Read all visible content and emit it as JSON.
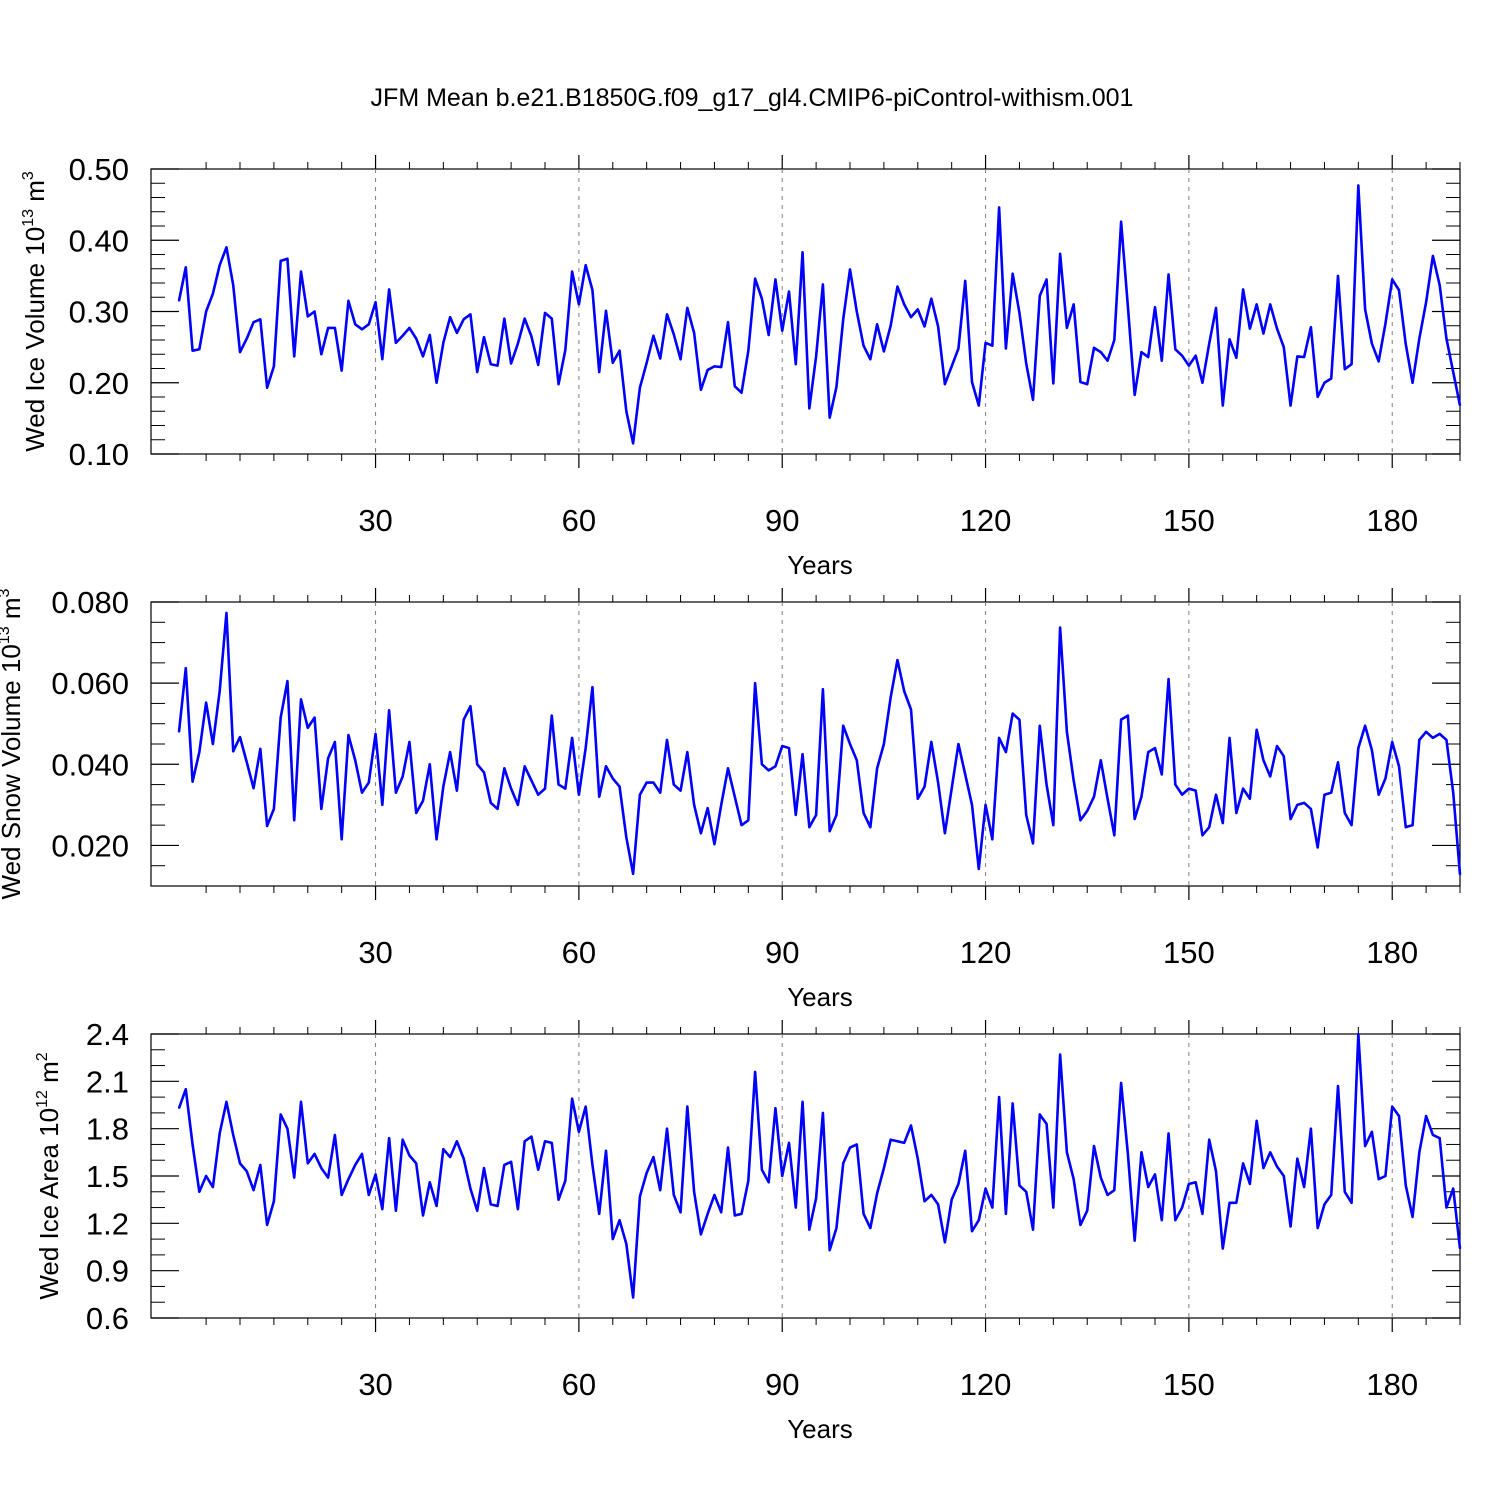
{
  "title": "JFM Mean b.e21.B1850G.f09_g17_gl4.CMIP6-piControl-withism.001",
  "colors": {
    "series": "#0000ff",
    "axis": "#000000",
    "grid": "#808080"
  },
  "chart_data": [
    {
      "type": "line",
      "ylabel": {
        "main": "Wed Ice Volume 10",
        "exp": "13",
        "unit": " m",
        "unit_exp": "3"
      },
      "xlabel": "Years",
      "xlim": [
        1,
        190
      ],
      "ylim": [
        0.1,
        0.5
      ],
      "x_ticks": [
        30,
        60,
        90,
        120,
        150,
        180
      ],
      "x_tick_labels": [
        "30",
        "60",
        "90",
        "120",
        "150",
        "180"
      ],
      "y_ticks": [
        0.1,
        0.2,
        0.3,
        0.4,
        0.5
      ],
      "y_tick_labels": [
        "0.10",
        "0.20",
        "0.30",
        "0.40",
        "0.50"
      ],
      "y_minor_step": 0.02,
      "grid": "vertical dashed at major x ticks",
      "series": [
        {
          "name": "Wed Ice Volume",
          "x_start": 1,
          "values": [
            0.315,
            0.362,
            0.245,
            0.247,
            0.3,
            0.325,
            0.365,
            0.39,
            0.337,
            0.243,
            0.262,
            0.285,
            0.289,
            0.193,
            0.223,
            0.371,
            0.374,
            0.237,
            0.356,
            0.293,
            0.3,
            0.24,
            0.277,
            0.277,
            0.217,
            0.315,
            0.282,
            0.275,
            0.282,
            0.313,
            0.233,
            0.331,
            0.256,
            0.266,
            0.277,
            0.262,
            0.237,
            0.267,
            0.2,
            0.256,
            0.292,
            0.27,
            0.289,
            0.296,
            0.215,
            0.264,
            0.226,
            0.224,
            0.29,
            0.227,
            0.255,
            0.29,
            0.265,
            0.225,
            0.298,
            0.29,
            0.198,
            0.246,
            0.356,
            0.31,
            0.365,
            0.33,
            0.215,
            0.301,
            0.228,
            0.245,
            0.16,
            0.115,
            0.193,
            0.228,
            0.266,
            0.234,
            0.296,
            0.268,
            0.233,
            0.305,
            0.27,
            0.19,
            0.218,
            0.223,
            0.222,
            0.285,
            0.195,
            0.186,
            0.245,
            0.346,
            0.318,
            0.267,
            0.345,
            0.273,
            0.328,
            0.226,
            0.383,
            0.164,
            0.237,
            0.338,
            0.151,
            0.194,
            0.289,
            0.359,
            0.3,
            0.252,
            0.233,
            0.282,
            0.244,
            0.28,
            0.335,
            0.31,
            0.292,
            0.303,
            0.279,
            0.318,
            0.279,
            0.198,
            0.223,
            0.248,
            0.343,
            0.201,
            0.168,
            0.256,
            0.252,
            0.446,
            0.248,
            0.353,
            0.298,
            0.227,
            0.176,
            0.322,
            0.345,
            0.199,
            0.381,
            0.277,
            0.31,
            0.201,
            0.198,
            0.249,
            0.243,
            0.231,
            0.26,
            0.426,
            0.307,
            0.183,
            0.243,
            0.236,
            0.306,
            0.231,
            0.352,
            0.247,
            0.238,
            0.224,
            0.238,
            0.2,
            0.255,
            0.305,
            0.168,
            0.261,
            0.235,
            0.331,
            0.276,
            0.31,
            0.269,
            0.31,
            0.276,
            0.25,
            0.168,
            0.237,
            0.236,
            0.278,
            0.18,
            0.2,
            0.206,
            0.35,
            0.219,
            0.226,
            0.477,
            0.303,
            0.255,
            0.23,
            0.283,
            0.345,
            0.33,
            0.254,
            0.2,
            0.262,
            0.313,
            0.378,
            0.337,
            0.262,
            0.215,
            0.168
          ]
        }
      ]
    },
    {
      "type": "line",
      "ylabel": {
        "main": "Wed Snow Volume 10",
        "exp": "13",
        "unit": " m",
        "unit_exp": "3"
      },
      "xlabel": "Years",
      "xlim": [
        1,
        190
      ],
      "ylim": [
        0.01,
        0.08
      ],
      "x_ticks": [
        30,
        60,
        90,
        120,
        150,
        180
      ],
      "x_tick_labels": [
        "30",
        "60",
        "90",
        "120",
        "150",
        "180"
      ],
      "y_ticks": [
        0.02,
        0.04,
        0.06,
        0.08
      ],
      "y_tick_labels": [
        "0.020",
        "0.040",
        "0.060",
        "0.080"
      ],
      "y_minor_step": 0.005,
      "grid": "vertical dashed at major x ticks",
      "series": [
        {
          "name": "Wed Snow Volume",
          "x_start": 1,
          "values": [
            0.048,
            0.0637,
            0.0357,
            0.043,
            0.0552,
            0.045,
            0.058,
            0.0773,
            0.0432,
            0.0467,
            0.0405,
            0.0341,
            0.0438,
            0.0248,
            0.029,
            0.0515,
            0.0605,
            0.0262,
            0.056,
            0.049,
            0.0515,
            0.029,
            0.0415,
            0.0455,
            0.0215,
            0.0472,
            0.041,
            0.033,
            0.0355,
            0.0475,
            0.03,
            0.0533,
            0.033,
            0.037,
            0.0455,
            0.028,
            0.031,
            0.04,
            0.0215,
            0.0345,
            0.043,
            0.0335,
            0.051,
            0.0543,
            0.04,
            0.038,
            0.0305,
            0.029,
            0.039,
            0.034,
            0.03,
            0.0395,
            0.036,
            0.0325,
            0.034,
            0.052,
            0.035,
            0.034,
            0.0465,
            0.0325,
            0.044,
            0.059,
            0.032,
            0.0395,
            0.0365,
            0.0345,
            0.022,
            0.013,
            0.0325,
            0.0355,
            0.0355,
            0.033,
            0.046,
            0.035,
            0.0335,
            0.043,
            0.03,
            0.023,
            0.0292,
            0.0203,
            0.03,
            0.039,
            0.032,
            0.025,
            0.0262,
            0.06,
            0.04,
            0.0385,
            0.0395,
            0.0445,
            0.044,
            0.0275,
            0.0425,
            0.0245,
            0.0275,
            0.0585,
            0.0235,
            0.0275,
            0.0495,
            0.045,
            0.041,
            0.028,
            0.0245,
            0.039,
            0.045,
            0.0565,
            0.0657,
            0.058,
            0.0535,
            0.0315,
            0.0345,
            0.0455,
            0.0355,
            0.023,
            0.034,
            0.045,
            0.0375,
            0.03,
            0.0142,
            0.03,
            0.0215,
            0.0465,
            0.043,
            0.0525,
            0.051,
            0.0275,
            0.0205,
            0.0495,
            0.035,
            0.025,
            0.0737,
            0.048,
            0.036,
            0.0262,
            0.0285,
            0.032,
            0.041,
            0.0315,
            0.0225,
            0.051,
            0.052,
            0.0265,
            0.032,
            0.043,
            0.044,
            0.0375,
            0.061,
            0.035,
            0.0325,
            0.034,
            0.0335,
            0.0225,
            0.0245,
            0.0325,
            0.0255,
            0.0465,
            0.028,
            0.034,
            0.0315,
            0.0485,
            0.041,
            0.037,
            0.0445,
            0.042,
            0.0265,
            0.03,
            0.0305,
            0.029,
            0.0195,
            0.0325,
            0.033,
            0.0405,
            0.028,
            0.025,
            0.044,
            0.0495,
            0.0435,
            0.0325,
            0.0365,
            0.0455,
            0.0395,
            0.0245,
            0.025,
            0.046,
            0.048,
            0.0465,
            0.0475,
            0.046,
            0.033,
            0.0128
          ]
        }
      ]
    },
    {
      "type": "line",
      "ylabel": {
        "main": "Wed Ice Area 10",
        "exp": "12",
        "unit": " m",
        "unit_exp": "2"
      },
      "xlabel": "Years",
      "xlim": [
        1,
        190
      ],
      "ylim": [
        0.6,
        2.4
      ],
      "x_ticks": [
        30,
        60,
        90,
        120,
        150,
        180
      ],
      "x_tick_labels": [
        "30",
        "60",
        "90",
        "120",
        "150",
        "180"
      ],
      "y_ticks": [
        0.6,
        0.9,
        1.2,
        1.5,
        1.8,
        2.1,
        2.4
      ],
      "y_tick_labels": [
        "0.6",
        "0.9",
        "1.2",
        "1.5",
        "1.8",
        "2.1",
        "2.4"
      ],
      "y_minor_step": 0.1,
      "grid": "vertical dashed at major x ticks",
      "series": [
        {
          "name": "Wed Ice Area",
          "x_start": 1,
          "values": [
            1.93,
            2.05,
            1.7,
            1.4,
            1.5,
            1.43,
            1.77,
            1.97,
            1.76,
            1.58,
            1.53,
            1.41,
            1.57,
            1.19,
            1.34,
            1.89,
            1.8,
            1.49,
            1.97,
            1.58,
            1.64,
            1.55,
            1.49,
            1.76,
            1.38,
            1.48,
            1.57,
            1.64,
            1.38,
            1.51,
            1.29,
            1.74,
            1.28,
            1.73,
            1.63,
            1.58,
            1.25,
            1.46,
            1.31,
            1.67,
            1.62,
            1.72,
            1.61,
            1.42,
            1.28,
            1.55,
            1.32,
            1.31,
            1.57,
            1.59,
            1.29,
            1.72,
            1.75,
            1.54,
            1.72,
            1.71,
            1.35,
            1.47,
            1.99,
            1.78,
            1.94,
            1.57,
            1.26,
            1.66,
            1.1,
            1.22,
            1.07,
            0.73,
            1.37,
            1.52,
            1.62,
            1.41,
            1.8,
            1.38,
            1.27,
            1.94,
            1.4,
            1.13,
            1.26,
            1.38,
            1.27,
            1.68,
            1.25,
            1.26,
            1.47,
            2.16,
            1.54,
            1.46,
            1.93,
            1.5,
            1.71,
            1.3,
            1.97,
            1.16,
            1.36,
            1.9,
            1.03,
            1.17,
            1.58,
            1.68,
            1.7,
            1.26,
            1.17,
            1.39,
            1.55,
            1.73,
            1.72,
            1.71,
            1.82,
            1.61,
            1.34,
            1.38,
            1.32,
            1.08,
            1.35,
            1.45,
            1.66,
            1.15,
            1.22,
            1.42,
            1.3,
            2.0,
            1.26,
            1.96,
            1.44,
            1.4,
            1.16,
            1.89,
            1.83,
            1.3,
            2.27,
            1.65,
            1.48,
            1.19,
            1.28,
            1.69,
            1.49,
            1.38,
            1.41,
            2.09,
            1.64,
            1.09,
            1.65,
            1.43,
            1.51,
            1.22,
            1.77,
            1.22,
            1.3,
            1.45,
            1.46,
            1.26,
            1.73,
            1.53,
            1.04,
            1.33,
            1.33,
            1.58,
            1.45,
            1.85,
            1.55,
            1.65,
            1.56,
            1.5,
            1.18,
            1.61,
            1.43,
            1.8,
            1.17,
            1.32,
            1.38,
            2.07,
            1.4,
            1.33,
            2.4,
            1.69,
            1.78,
            1.48,
            1.5,
            1.94,
            1.88,
            1.44,
            1.24,
            1.65,
            1.88,
            1.76,
            1.74,
            1.3,
            1.42,
            1.04
          ]
        }
      ]
    }
  ]
}
